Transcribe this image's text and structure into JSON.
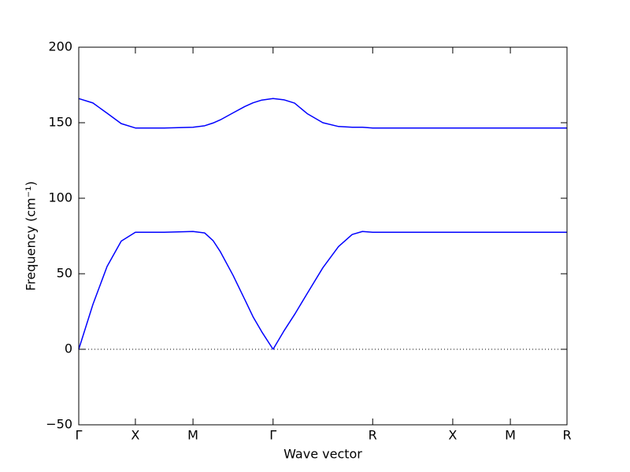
{
  "chart_data": {
    "type": "line",
    "xlabel": "Wave vector",
    "ylabel": "Frequency (cm⁻¹)",
    "x": [
      0,
      0.029,
      0.058,
      0.087,
      0.116,
      0.175,
      0.234,
      0.258,
      0.275,
      0.29,
      0.316,
      0.34,
      0.357,
      0.375,
      0.398,
      0.42,
      0.442,
      0.468,
      0.5,
      0.532,
      0.56,
      0.581,
      0.602,
      0.766,
      0.884,
      1.0
    ],
    "series": [
      {
        "color": "#0000ff",
        "values": [
          0,
          29.7,
          54.8,
          71.6,
          77.5,
          77.5,
          78,
          77,
          72,
          64.6,
          49,
          33,
          21.5,
          11.5,
          0,
          12,
          23,
          37,
          54,
          68,
          76,
          78,
          77.5,
          77.5,
          77.5,
          77.5
        ]
      },
      {
        "color": "#0000ff",
        "values": [
          166,
          163.1,
          156.3,
          149.4,
          146.5,
          146.5,
          147,
          148,
          149.8,
          151.9,
          156.5,
          160.7,
          163.2,
          165,
          166,
          165.2,
          163,
          156,
          150,
          147.5,
          147,
          147,
          146.5,
          146.5,
          146.5,
          146.5
        ]
      }
    ],
    "xlim": [
      0,
      1.0
    ],
    "ylim": [
      -50,
      200
    ],
    "xticks": [
      {
        "value": 0,
        "label": "Γ"
      },
      {
        "value": 0.116,
        "label": "X"
      },
      {
        "value": 0.234,
        "label": "M"
      },
      {
        "value": 0.398,
        "label": "Γ"
      },
      {
        "value": 0.602,
        "label": "R"
      },
      {
        "value": 0.766,
        "label": "X"
      },
      {
        "value": 0.884,
        "label": "M"
      },
      {
        "value": 1.0,
        "label": "R"
      }
    ],
    "yticks": [
      {
        "value": -50,
        "label": "−50"
      },
      0,
      50,
      100,
      150,
      200
    ],
    "hline": 0,
    "grid": false
  }
}
